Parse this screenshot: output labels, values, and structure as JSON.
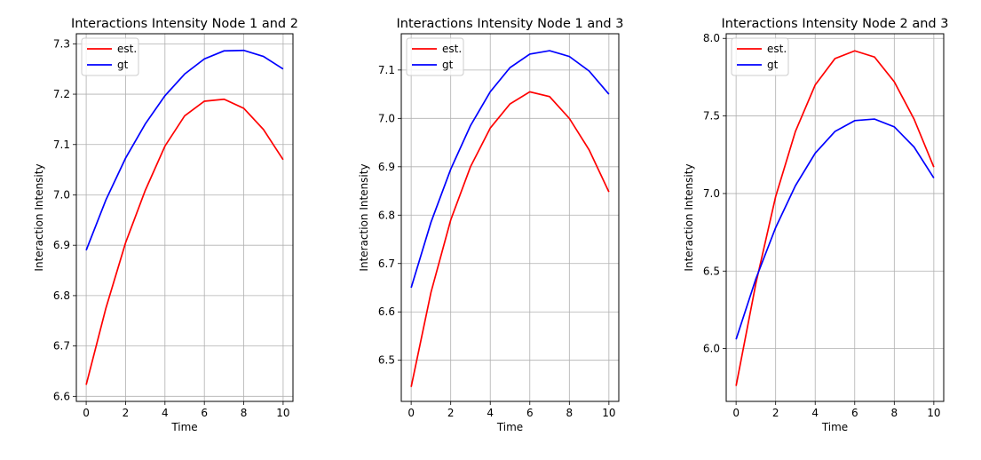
{
  "chart_data": [
    {
      "type": "line",
      "title": "Interactions Intensity Node 1 and 2",
      "xlabel": "Time",
      "ylabel": "Interaction Intensity",
      "xlim": [
        -0.5,
        10.5
      ],
      "ylim": [
        6.59,
        7.32
      ],
      "xticks": [
        0,
        2,
        4,
        6,
        8,
        10
      ],
      "yticks": [
        6.6,
        6.7,
        6.8,
        6.9,
        7.0,
        7.1,
        7.2,
        7.3
      ],
      "ytick_labels": [
        "6.6",
        "6.7",
        "6.8",
        "6.9",
        "7.0",
        "7.1",
        "7.2",
        "7.3"
      ],
      "grid": true,
      "legend_position": "upper left",
      "series": [
        {
          "name": "est.",
          "color": "#ff0000",
          "x": [
            0,
            1,
            2,
            3,
            4,
            5,
            6,
            7,
            8,
            9,
            10
          ],
          "y": [
            6.623,
            6.775,
            6.905,
            7.009,
            7.097,
            7.157,
            7.186,
            7.19,
            7.172,
            7.13,
            7.07
          ]
        },
        {
          "name": "gt",
          "color": "#0000ff",
          "x": [
            0,
            1,
            2,
            3,
            4,
            5,
            6,
            7,
            8,
            9,
            10
          ],
          "y": [
            6.89,
            6.99,
            7.073,
            7.141,
            7.197,
            7.24,
            7.27,
            7.286,
            7.287,
            7.275,
            7.25
          ]
        }
      ]
    },
    {
      "type": "line",
      "title": "Interactions Intensity Node 1 and 3",
      "xlabel": "Time",
      "ylabel": "Interaction Intensity",
      "xlim": [
        -0.5,
        10.5
      ],
      "ylim": [
        6.415,
        7.175
      ],
      "xticks": [
        0,
        2,
        4,
        6,
        8,
        10
      ],
      "yticks": [
        6.5,
        6.6,
        6.7,
        6.8,
        6.9,
        7.0,
        7.1
      ],
      "ytick_labels": [
        "6.5",
        "6.6",
        "6.7",
        "6.8",
        "6.9",
        "7.0",
        "7.1"
      ],
      "grid": true,
      "legend_position": "upper left",
      "series": [
        {
          "name": "est.",
          "color": "#ff0000",
          "x": [
            0,
            1,
            2,
            3,
            4,
            5,
            6,
            7,
            8,
            9,
            10
          ],
          "y": [
            6.445,
            6.64,
            6.79,
            6.9,
            6.98,
            7.03,
            7.055,
            7.045,
            7.0,
            6.935,
            6.848
          ]
        },
        {
          "name": "gt",
          "color": "#0000ff",
          "x": [
            0,
            1,
            2,
            3,
            4,
            5,
            6,
            7,
            8,
            9,
            10
          ],
          "y": [
            6.65,
            6.785,
            6.895,
            6.985,
            7.055,
            7.105,
            7.133,
            7.14,
            7.128,
            7.098,
            7.05
          ]
        }
      ]
    },
    {
      "type": "line",
      "title": "Interactions Intensity Node 2 and 3",
      "xlabel": "Time",
      "ylabel": "Interaction Intensity",
      "xlim": [
        -0.5,
        10.5
      ],
      "ylim": [
        5.66,
        8.03
      ],
      "xticks": [
        0,
        2,
        4,
        6,
        8,
        10
      ],
      "yticks": [
        6.0,
        6.5,
        7.0,
        7.5,
        8.0
      ],
      "ytick_labels": [
        "6.0",
        "6.5",
        "7.0",
        "7.5",
        "8.0"
      ],
      "grid": true,
      "legend_position": "upper left",
      "series": [
        {
          "name": "est.",
          "color": "#ff0000",
          "x": [
            0,
            1,
            2,
            3,
            4,
            5,
            6,
            7,
            8,
            9,
            10
          ],
          "y": [
            5.76,
            6.42,
            6.98,
            7.4,
            7.7,
            7.87,
            7.92,
            7.88,
            7.72,
            7.48,
            7.17
          ]
        },
        {
          "name": "gt",
          "color": "#0000ff",
          "x": [
            0,
            1,
            2,
            3,
            4,
            5,
            6,
            7,
            8,
            9,
            10
          ],
          "y": [
            6.06,
            6.45,
            6.78,
            7.05,
            7.26,
            7.4,
            7.47,
            7.48,
            7.43,
            7.3,
            7.1
          ]
        }
      ]
    }
  ]
}
